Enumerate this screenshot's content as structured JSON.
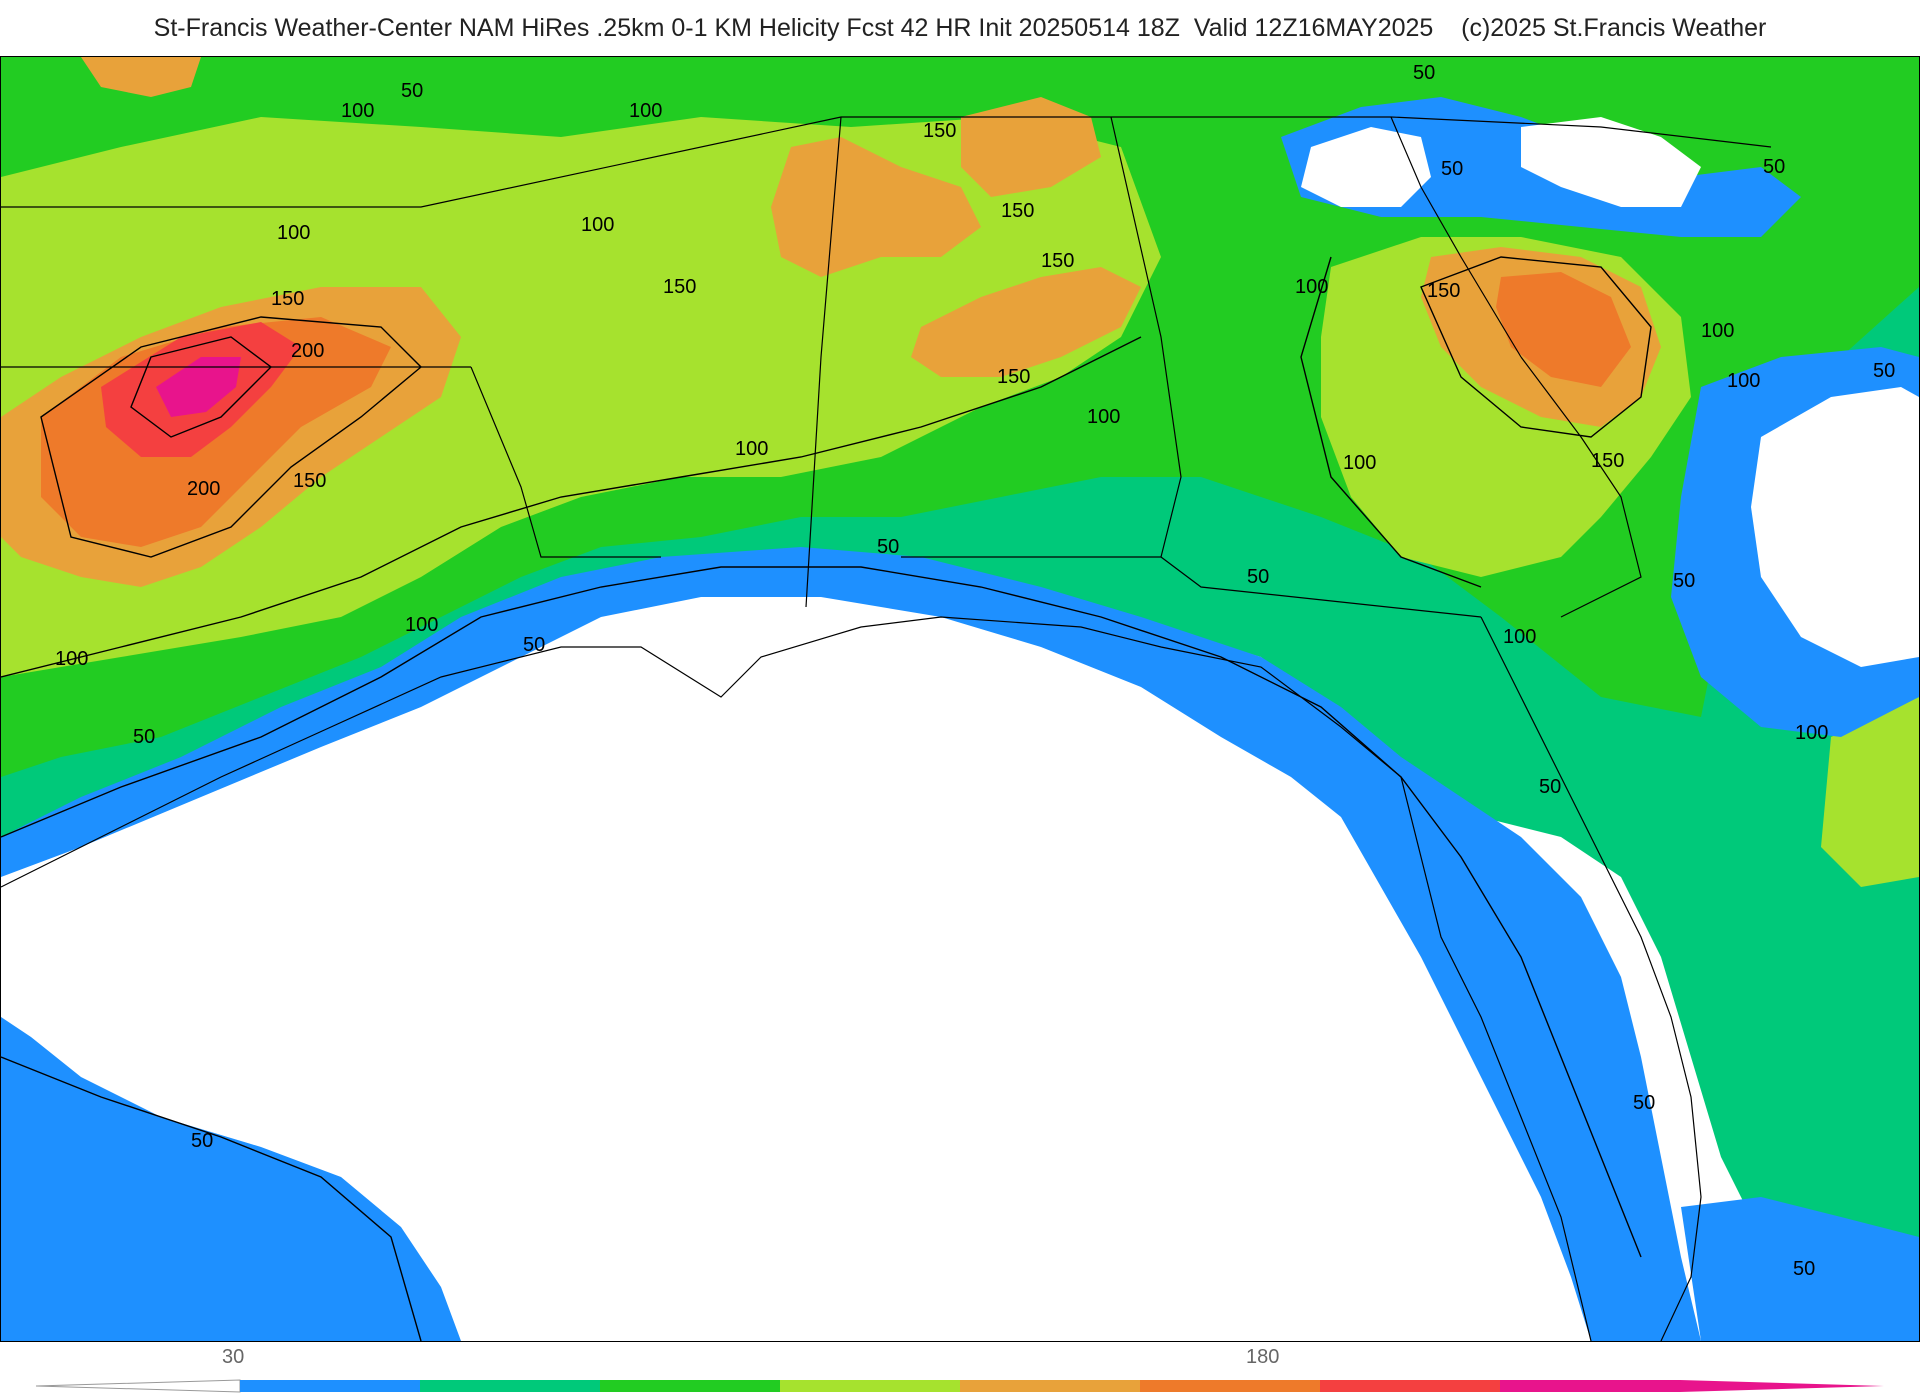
{
  "header": {
    "title": "St-Francis Weather-Center NAM HiRes .25km 0-1 KM Helicity Fcst 42 HR Init 20250514 18Z  Valid 12Z16MAY2025    (c)2025 St.Francis Weather"
  },
  "colorbar": {
    "tick_low": "30",
    "tick_high": "180",
    "colors": [
      "#1e90ff",
      "#00c97a",
      "#22cc22",
      "#a6e22e",
      "#e8a23a",
      "#ee7a2a",
      "#f44040",
      "#e8148c"
    ]
  },
  "contour_labels": {
    "c50": "50",
    "c100": "100",
    "c150": "150",
    "c200": "200"
  },
  "palette": {
    "blue_50": "#1e90ff",
    "teal_75": "#00c97a",
    "green_100": "#22cc22",
    "lime_125": "#a6e22e",
    "orange_150": "#e8a23a",
    "darkorange_175": "#ee7a2a",
    "red_200": "#f44040",
    "magenta_225": "#e8148c"
  }
}
